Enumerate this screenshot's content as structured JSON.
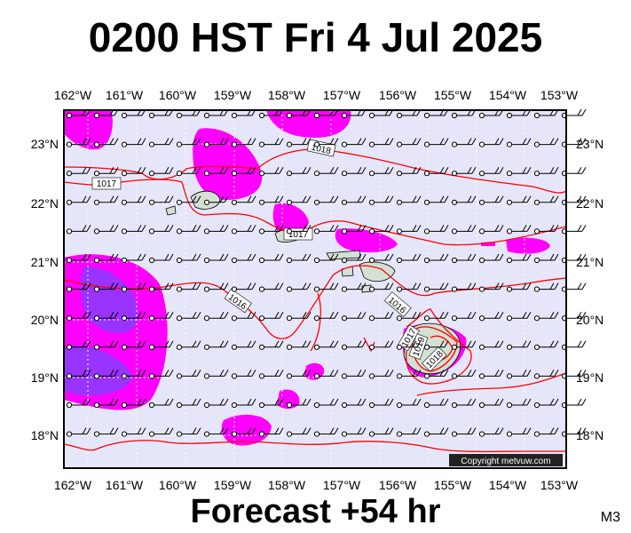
{
  "title": "0200 HST Fri 4 Jul 2025",
  "footer": "Forecast +54 hr",
  "panel_code": "M3",
  "copyright": "Copyright metvuw.com",
  "lon_labels": [
    "162°W",
    "161°W",
    "160°W",
    "159°W",
    "158°W",
    "157°W",
    "156°W",
    "155°W",
    "154°W",
    "153°W"
  ],
  "lat_labels": [
    "23°N",
    "22°N",
    "21°N",
    "20°N",
    "19°N",
    "18°N"
  ],
  "isobar_labels": [
    "1018",
    "1017",
    "1017",
    "1016",
    "1016",
    "1017",
    "1019",
    "1018"
  ],
  "colors": {
    "ocean": "#e6e6fa",
    "isobar": "#ff0000",
    "rain_light": "#ff00ff",
    "rain_heavy": "#9933ff",
    "land": "#d3e0d3"
  }
}
